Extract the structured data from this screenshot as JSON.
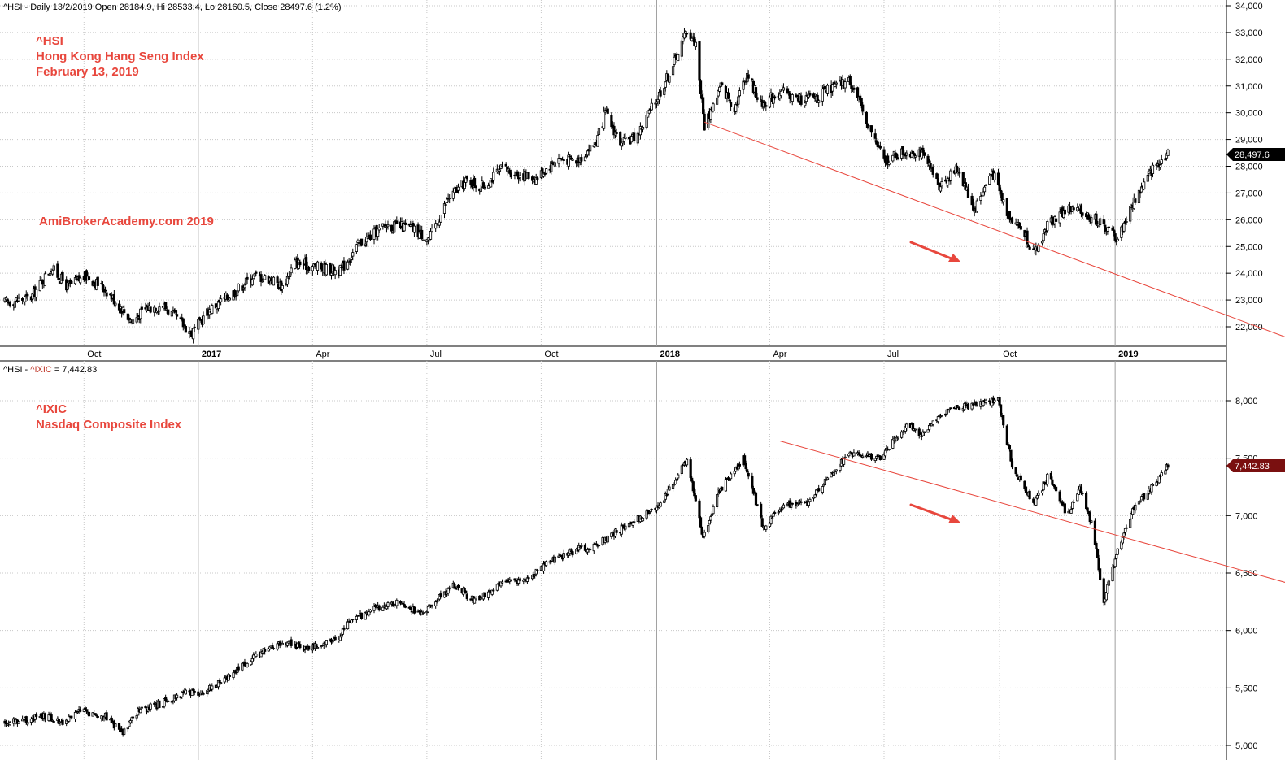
{
  "panel1": {
    "header": "^HSI - Daily 13/2/2019 Open 28184.9, Hi 28533.4, Lo 28160.5, Close 28497.6 (1.2%)",
    "annotation_lines": [
      "^HSI",
      "Hong Kong Hang Seng Index",
      "February 13, 2019"
    ],
    "watermark": "AmiBrokerAcademy.com  2019",
    "last_value_label": "28,497.6"
  },
  "panel2": {
    "header_prefix": "^HSI - ",
    "header_symbol": "^IXIC",
    "header_rest": " = 7,442.83",
    "annotation_lines": [
      "^IXIC",
      "Nasdaq Composite Index"
    ],
    "last_value_label": "7,442.83"
  },
  "colors": {
    "annotation": "#e8473d",
    "trendline": "#e8473d",
    "arrow": "#e8473d",
    "hsi_label_bg": "#000000",
    "ixic_label_bg": "#7a1010",
    "grid": "#c0c0c0",
    "candle": "#000000"
  },
  "chart_data": [
    {
      "type": "candlestick",
      "series_name": "^HSI",
      "y_ticks": [
        22000,
        23000,
        24000,
        25000,
        26000,
        27000,
        28000,
        29000,
        30000,
        31000,
        32000,
        33000,
        34000
      ],
      "y_tick_labels": [
        "22,000",
        "23,000",
        "24,000",
        "25,000",
        "26,000",
        "27,000",
        "28,000",
        "29,000",
        "30,000",
        "31,000",
        "32,000",
        "33,000",
        "34,000"
      ],
      "ylim": [
        21200,
        34200
      ],
      "x_tick_labels": [
        "Oct",
        "2017",
        "Apr",
        "Jul",
        "Oct",
        "2018",
        "Apr",
        "Jul",
        "Oct",
        "2019"
      ],
      "x_tick_bold": [
        false,
        true,
        false,
        false,
        false,
        true,
        false,
        false,
        false,
        true
      ],
      "x_tick_dates": [
        "2016-10-03",
        "2017-01-02",
        "2017-04-03",
        "2017-07-03",
        "2017-10-02",
        "2018-01-02",
        "2018-04-02",
        "2018-07-02",
        "2018-10-02",
        "2019-01-02"
      ],
      "date_range": [
        "2016-08-01",
        "2019-02-13"
      ],
      "closes": [
        [
          "2016-08-01",
          22900
        ],
        [
          "2016-08-22",
          23100
        ],
        [
          "2016-09-07",
          24200
        ],
        [
          "2016-09-20",
          23500
        ],
        [
          "2016-10-05",
          23900
        ],
        [
          "2016-10-20",
          23400
        ],
        [
          "2016-11-02",
          22700
        ],
        [
          "2016-11-10",
          22200
        ],
        [
          "2016-11-22",
          22700
        ],
        [
          "2016-12-05",
          22800
        ],
        [
          "2016-12-16",
          22300
        ],
        [
          "2016-12-28",
          21750
        ],
        [
          "2017-01-10",
          22600
        ],
        [
          "2017-01-25",
          23100
        ],
        [
          "2017-02-15",
          23900
        ],
        [
          "2017-03-01",
          23800
        ],
        [
          "2017-03-10",
          23500
        ],
        [
          "2017-03-20",
          24400
        ],
        [
          "2017-04-10",
          24200
        ],
        [
          "2017-04-25",
          24100
        ],
        [
          "2017-05-10",
          25100
        ],
        [
          "2017-06-01",
          25800
        ],
        [
          "2017-06-20",
          25700
        ],
        [
          "2017-07-05",
          25300
        ],
        [
          "2017-07-20",
          26800
        ],
        [
          "2017-08-05",
          27500
        ],
        [
          "2017-08-15",
          27200
        ],
        [
          "2017-09-01",
          27900
        ],
        [
          "2017-09-15",
          27700
        ],
        [
          "2017-09-28",
          27550
        ],
        [
          "2017-10-15",
          28300
        ],
        [
          "2017-10-30",
          28200
        ],
        [
          "2017-11-15",
          28900
        ],
        [
          "2017-11-22",
          30000
        ],
        [
          "2017-12-05",
          28800
        ],
        [
          "2017-12-18",
          29200
        ],
        [
          "2018-01-02",
          30500
        ],
        [
          "2018-01-15",
          31800
        ],
        [
          "2018-01-26",
          33100
        ],
        [
          "2018-02-02",
          32600
        ],
        [
          "2018-02-09",
          29500
        ],
        [
          "2018-02-22",
          31000
        ],
        [
          "2018-03-05",
          30200
        ],
        [
          "2018-03-15",
          31500
        ],
        [
          "2018-03-26",
          30300
        ],
        [
          "2018-04-10",
          30800
        ],
        [
          "2018-04-25",
          30500
        ],
        [
          "2018-05-10",
          30600
        ],
        [
          "2018-05-25",
          31000
        ],
        [
          "2018-06-05",
          31200
        ],
        [
          "2018-06-20",
          29500
        ],
        [
          "2018-07-02",
          28200
        ],
        [
          "2018-07-15",
          28500
        ],
        [
          "2018-07-30",
          28600
        ],
        [
          "2018-08-15",
          27300
        ],
        [
          "2018-08-30",
          27900
        ],
        [
          "2018-09-12",
          26400
        ],
        [
          "2018-09-26",
          27800
        ],
        [
          "2018-10-08",
          26300
        ],
        [
          "2018-10-22",
          25500
        ],
        [
          "2018-10-30",
          24700
        ],
        [
          "2018-11-10",
          25900
        ],
        [
          "2018-11-25",
          26400
        ],
        [
          "2018-12-05",
          26300
        ],
        [
          "2018-12-15",
          26100
        ],
        [
          "2018-12-28",
          25600
        ],
        [
          "2019-01-04",
          25300
        ],
        [
          "2019-01-18",
          26800
        ],
        [
          "2019-02-01",
          27900
        ],
        [
          "2019-02-13",
          28497.6
        ]
      ],
      "trendline": {
        "from": [
          "2018-02-09",
          29650
        ],
        "to": [
          "2019-05-30",
          21400
        ]
      }
    },
    {
      "type": "candlestick",
      "series_name": "^IXIC",
      "y_ticks": [
        5000,
        5500,
        6000,
        6500,
        7000,
        7500,
        8000
      ],
      "y_tick_labels": [
        "5,000",
        "5,500",
        "6,000",
        "6,500",
        "7,000",
        "7,500",
        "8,000"
      ],
      "ylim": [
        4950,
        8350
      ],
      "closes": [
        [
          "2016-08-01",
          5200
        ],
        [
          "2016-09-01",
          5250
        ],
        [
          "2016-09-15",
          5200
        ],
        [
          "2016-10-01",
          5300
        ],
        [
          "2016-10-20",
          5250
        ],
        [
          "2016-11-03",
          5100
        ],
        [
          "2016-11-15",
          5300
        ],
        [
          "2016-12-01",
          5350
        ],
        [
          "2016-12-20",
          5450
        ],
        [
          "2017-01-05",
          5450
        ],
        [
          "2017-01-25",
          5600
        ],
        [
          "2017-02-20",
          5800
        ],
        [
          "2017-03-10",
          5900
        ],
        [
          "2017-03-28",
          5850
        ],
        [
          "2017-04-20",
          5900
        ],
        [
          "2017-05-05",
          6100
        ],
        [
          "2017-05-25",
          6200
        ],
        [
          "2017-06-10",
          6250
        ],
        [
          "2017-06-28",
          6150
        ],
        [
          "2017-07-25",
          6400
        ],
        [
          "2017-08-10",
          6250
        ],
        [
          "2017-08-30",
          6400
        ],
        [
          "2017-09-20",
          6450
        ],
        [
          "2017-10-10",
          6600
        ],
        [
          "2017-10-30",
          6700
        ],
        [
          "2017-11-15",
          6750
        ],
        [
          "2017-11-29",
          6850
        ],
        [
          "2017-12-15",
          6950
        ],
        [
          "2018-01-05",
          7100
        ],
        [
          "2018-01-26",
          7480
        ],
        [
          "2018-02-08",
          6800
        ],
        [
          "2018-02-20",
          7200
        ],
        [
          "2018-03-12",
          7500
        ],
        [
          "2018-03-28",
          6900
        ],
        [
          "2018-04-15",
          7100
        ],
        [
          "2018-05-01",
          7100
        ],
        [
          "2018-05-20",
          7350
        ],
        [
          "2018-06-05",
          7550
        ],
        [
          "2018-06-28",
          7500
        ],
        [
          "2018-07-20",
          7800
        ],
        [
          "2018-08-01",
          7700
        ],
        [
          "2018-08-25",
          7950
        ],
        [
          "2018-09-10",
          7950
        ],
        [
          "2018-10-01",
          8000
        ],
        [
          "2018-10-12",
          7450
        ],
        [
          "2018-10-29",
          7100
        ],
        [
          "2018-11-10",
          7350
        ],
        [
          "2018-11-25",
          7000
        ],
        [
          "2018-12-05",
          7250
        ],
        [
          "2018-12-15",
          6900
        ],
        [
          "2018-12-24",
          6250
        ],
        [
          "2019-01-03",
          6650
        ],
        [
          "2019-01-18",
          7100
        ],
        [
          "2019-02-01",
          7250
        ],
        [
          "2019-02-13",
          7442.83
        ]
      ],
      "trendline": {
        "from": [
          "2018-04-10",
          7650
        ],
        "to": [
          "2019-05-30",
          6380
        ]
      }
    }
  ]
}
